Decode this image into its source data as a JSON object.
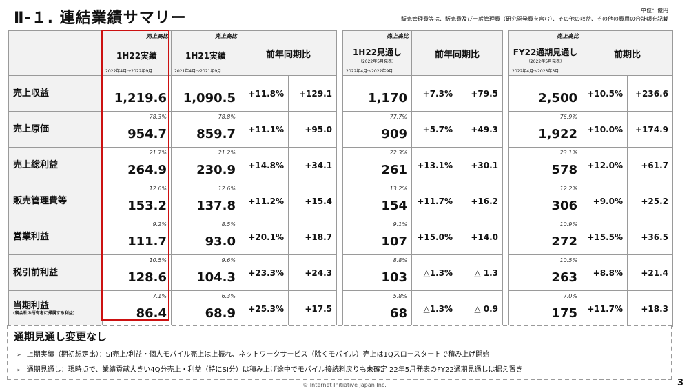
{
  "title": "Ⅱ-１.  連結業績サマリー",
  "unit": "単位：億円",
  "unit_note": "販売管理費等は、販売費及び一般管理費（研究開発費を含む）、その他の収益、その他の費用の合計額を記載",
  "headers": {
    "a": {
      "tag": "売上高比",
      "name": "1H22実績",
      "period": "2022年4月～2022年9月"
    },
    "b": {
      "tag": "売上高比",
      "name": "1H21実績",
      "period": "2021年4月～2021年9月"
    },
    "yoy1": "前年同期比",
    "c": {
      "tag": "売上高比",
      "name": "1H22見通し",
      "note": "（2022年5月発表）",
      "period": "2022年4月～2022年9月"
    },
    "yoy2": "前年同期比",
    "d": {
      "tag": "売上高比",
      "name": "FY22通期見通し",
      "note": "（2022年5月発表）",
      "period": "2022年4月～2023年3月"
    },
    "yoy3": "前期比"
  },
  "rows": [
    {
      "label": "売上収益",
      "sub": "",
      "a": "1,219.6",
      "ap": "",
      "b": "1,090.5",
      "bp": "",
      "c1": "+11.8%",
      "c2": "+129.1",
      "c": "1,170",
      "cp": "",
      "c3": "+7.3%",
      "c4": "+79.5",
      "d": "2,500",
      "dp": "",
      "d1": "+10.5%",
      "d2": "+236.6"
    },
    {
      "label": "売上原価",
      "sub": "",
      "a": "954.7",
      "ap": "78.3%",
      "b": "859.7",
      "bp": "78.8%",
      "c1": "+11.1%",
      "c2": "+95.0",
      "c": "909",
      "cp": "77.7%",
      "c3": "+5.7%",
      "c4": "+49.3",
      "d": "1,922",
      "dp": "76.9%",
      "d1": "+10.0%",
      "d2": "+174.9"
    },
    {
      "label": "売上総利益",
      "sub": "",
      "a": "264.9",
      "ap": "21.7%",
      "b": "230.9",
      "bp": "21.2%",
      "c1": "+14.8%",
      "c2": "+34.1",
      "c": "261",
      "cp": "22.3%",
      "c3": "+13.1%",
      "c4": "+30.1",
      "d": "578",
      "dp": "23.1%",
      "d1": "+12.0%",
      "d2": "+61.7"
    },
    {
      "label": "販売管理費等",
      "sub": "",
      "a": "153.2",
      "ap": "12.6%",
      "b": "137.8",
      "bp": "12.6%",
      "c1": "+11.2%",
      "c2": "+15.4",
      "c": "154",
      "cp": "13.2%",
      "c3": "+11.7%",
      "c4": "+16.2",
      "d": "306",
      "dp": "12.2%",
      "d1": "+9.0%",
      "d2": "+25.2"
    },
    {
      "label": "営業利益",
      "sub": "",
      "a": "111.7",
      "ap": "9.2%",
      "b": "93.0",
      "bp": "8.5%",
      "c1": "+20.1%",
      "c2": "+18.7",
      "c": "107",
      "cp": "9.1%",
      "c3": "+15.0%",
      "c4": "+14.0",
      "d": "272",
      "dp": "10.9%",
      "d1": "+15.5%",
      "d2": "+36.5"
    },
    {
      "label": "税引前利益",
      "sub": "",
      "a": "128.6",
      "ap": "10.5%",
      "b": "104.3",
      "bp": "9.6%",
      "c1": "+23.3%",
      "c2": "+24.3",
      "c": "103",
      "cp": "8.8%",
      "c3": "△1.3%",
      "c4": "△ 1.3",
      "d": "263",
      "dp": "10.5%",
      "d1": "+8.8%",
      "d2": "+21.4"
    },
    {
      "label": "当期利益",
      "sub": "(親会社の所有者に帰属する利益)",
      "a": "86.4",
      "ap": "7.1%",
      "b": "68.9",
      "bp": "6.3%",
      "c1": "+25.3%",
      "c2": "+17.5",
      "c": "68",
      "cp": "5.8%",
      "c3": "△1.3%",
      "c4": "△ 0.9",
      "d": "175",
      "dp": "7.0%",
      "d1": "+11.7%",
      "d2": "+18.3"
    }
  ],
  "notes": {
    "title": "通期見通し変更なし",
    "marker": "➢",
    "items": [
      "上期実績（期初想定比）：SI売上/利益・個人モバイル売上は上振れ、ネットワークサービス（除くモバイル）売上は1Qスロースタートで積み上げ開始",
      "通期見通し：現時点で、業績貢献大きい4Q分売上・利益（特にSI分）は積み上げ途中でモバイル接続料戻りも未確定  22年5月発表のFY22通期見通しは据え置き"
    ]
  },
  "footer": "© Internet Initiative Japan Inc.",
  "page_number": "3",
  "colors": {
    "highlight": "#cc1111",
    "header_bg": "#f2f2f2",
    "border": "#9a9a9a"
  }
}
